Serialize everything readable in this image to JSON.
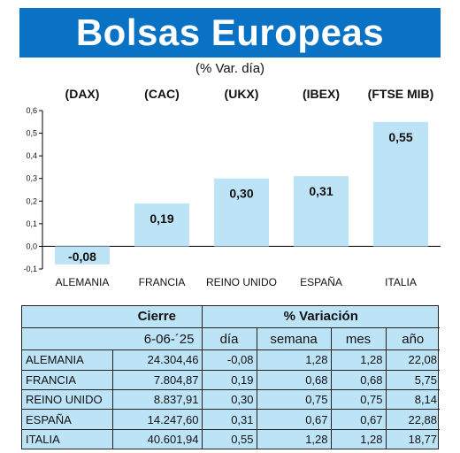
{
  "header": {
    "title": "Bolsas Europeas",
    "subtitle": "(% Var. día)"
  },
  "colors": {
    "banner": "#0a72c4",
    "bar": "#bde3f7",
    "table_bg": "#bde3f7"
  },
  "chart_data": {
    "type": "bar",
    "title": "Bolsas Europeas",
    "subtitle": "(% Var. día)",
    "categories": [
      "ALEMANIA",
      "FRANCIA",
      "REINO UNIDO",
      "ESPAÑA",
      "ITALIA"
    ],
    "index_labels": [
      "(DAX)",
      "(CAC)",
      "(UKX)",
      "(IBEX)",
      "(FTSE MIB)"
    ],
    "values": [
      -0.08,
      0.19,
      0.3,
      0.31,
      0.55
    ],
    "value_labels": [
      "-0,08",
      "0,19",
      "0,30",
      "0,31",
      "0,55"
    ],
    "ylim": [
      -0.1,
      0.6
    ],
    "yticks": [
      -0.1,
      0.0,
      0.1,
      0.2,
      0.3,
      0.4,
      0.5,
      0.6
    ],
    "ytick_labels": [
      "-0,1",
      "0,0",
      "0,1",
      "0,2",
      "0,3",
      "0,4",
      "0,5",
      "0,6"
    ],
    "grid": false,
    "legend": "none"
  },
  "table": {
    "group_cierre": "Cierre",
    "group_variacion": "% Variación",
    "date": "6-06-´25",
    "columns": [
      "día",
      "semana",
      "mes",
      "año"
    ],
    "rows": [
      {
        "name": "ALEMANIA",
        "cierre": "24.304,46",
        "dia": "-0,08",
        "semana": "1,28",
        "mes": "1,28",
        "ano": "22,08"
      },
      {
        "name": "FRANCIA",
        "cierre": "7.804,87",
        "dia": "0,19",
        "semana": "0,68",
        "mes": "0,68",
        "ano": "5,75"
      },
      {
        "name": "REINO UNIDO",
        "cierre": "8.837,91",
        "dia": "0,30",
        "semana": "0,75",
        "mes": "0,75",
        "ano": "8,14"
      },
      {
        "name": "ESPAÑA",
        "cierre": "14.247,60",
        "dia": "0,31",
        "semana": "0,67",
        "mes": "0,67",
        "ano": "22,88"
      },
      {
        "name": "ITALIA",
        "cierre": "40.601,94",
        "dia": "0,55",
        "semana": "1,28",
        "mes": "1,28",
        "ano": "18,77"
      }
    ]
  }
}
